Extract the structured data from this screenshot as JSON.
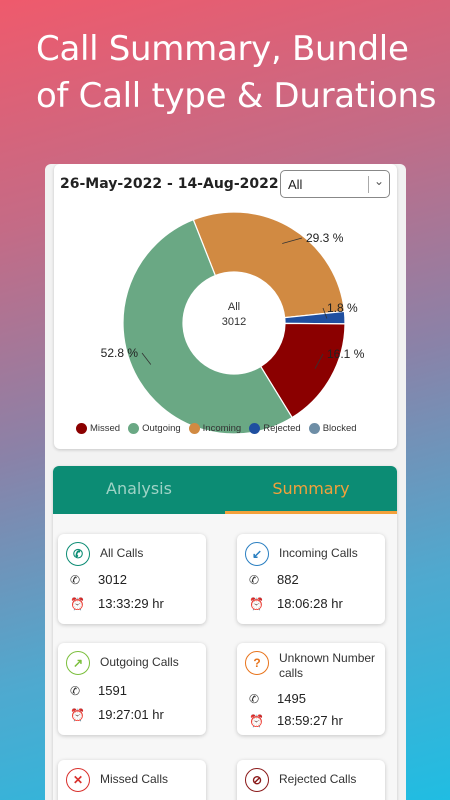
{
  "headline": "Call Summary, Bundle of Call type & Durations",
  "filter": {
    "date_range": "26-May-2022 - 14-Aug-2022",
    "type_value": "All"
  },
  "chart_data": {
    "type": "pie",
    "center_label": "All",
    "center_value": "3012",
    "slices": [
      {
        "name": "Incoming",
        "percent": 29.3,
        "label": "29.3 %",
        "color": "#d18a42"
      },
      {
        "name": "Rejected",
        "percent": 1.8,
        "label": "1.8 %",
        "color": "#1f4fa0"
      },
      {
        "name": "Missed",
        "percent": 16.1,
        "label": "16.1 %",
        "color": "#8b0000"
      },
      {
        "name": "Outgoing",
        "percent": 52.8,
        "label": "52.8 %",
        "color": "#6aa884"
      }
    ],
    "legend": [
      {
        "name": "Missed",
        "color": "#8b0000"
      },
      {
        "name": "Outgoing",
        "color": "#6aa884"
      },
      {
        "name": "Incoming",
        "color": "#d18a42"
      },
      {
        "name": "Rejected",
        "color": "#1f4fa0"
      },
      {
        "name": "Blocked",
        "color": "#6e8ea6"
      }
    ]
  },
  "tabs": {
    "analysis": "Analysis",
    "summary": "Summary"
  },
  "summary": {
    "all": {
      "title": "All Calls",
      "count": "3012",
      "duration": "13:33:29 hr"
    },
    "incoming": {
      "title": "Incoming Calls",
      "count": "882",
      "duration": "18:06:28 hr"
    },
    "outgoing": {
      "title": "Outgoing Calls",
      "count": "1591",
      "duration": "19:27:01 hr"
    },
    "unknown": {
      "title": "Unknown Number calls",
      "count": "1495",
      "duration": "18:59:27 hr"
    },
    "missed": {
      "title": "Missed Calls"
    },
    "rejected": {
      "title": "Rejected Calls"
    }
  },
  "colors": {
    "tab_bar": "#0c8c74",
    "active_tab": "#f3a13b"
  },
  "icons": {
    "all": "phone-icon",
    "incoming": "incoming-call-icon",
    "outgoing": "outgoing-call-icon",
    "unknown": "unknown-caller-icon",
    "missed": "missed-call-icon",
    "rejected": "rejected-call-icon",
    "count": "phone-icon",
    "duration": "alarm-clock-icon"
  }
}
